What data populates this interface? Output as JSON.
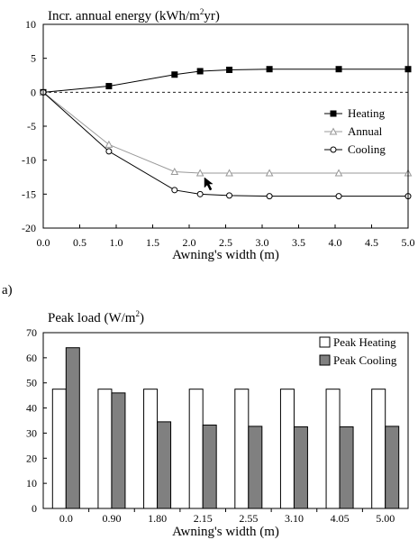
{
  "chart_data": [
    {
      "type": "line",
      "title": "Incr. annual energy (kWh/m²yr)",
      "title_main": "Incr. annual energy (kWh/m",
      "title_sup": "2",
      "title_tail": "yr)",
      "xlabel": "Awning's width (m)",
      "ylabel": "",
      "xlim": [
        0,
        5
      ],
      "ylim": [
        -20,
        10
      ],
      "xticks": [
        "0.0",
        "0.5",
        "1.0",
        "1.5",
        "2.0",
        "2.5",
        "3.0",
        "3.5",
        "4.0",
        "4.5",
        "5.0"
      ],
      "yticks": [
        "10",
        "5",
        "0",
        "-5",
        "-10",
        "-15",
        "-20"
      ],
      "zero_line": "dashed",
      "grid": false,
      "legend_position": "right",
      "series": [
        {
          "name": "Heating",
          "marker": "square",
          "color": "#000000",
          "x": [
            0,
            0.9,
            1.8,
            2.15,
            2.55,
            3.1,
            4.05,
            5.0
          ],
          "y": [
            0,
            0.9,
            2.6,
            3.1,
            3.3,
            3.4,
            3.4,
            3.4
          ]
        },
        {
          "name": "Annual",
          "marker": "triangle",
          "color": "#999999",
          "x": [
            0,
            0.9,
            1.8,
            2.15,
            2.55,
            3.1,
            4.05,
            5.0
          ],
          "y": [
            0,
            -7.7,
            -11.7,
            -11.9,
            -11.9,
            -11.9,
            -11.9,
            -11.9
          ]
        },
        {
          "name": "Cooling",
          "marker": "circle",
          "color": "#000000",
          "x": [
            0,
            0.9,
            1.8,
            2.15,
            2.55,
            3.1,
            4.05,
            5.0
          ],
          "y": [
            0,
            -8.7,
            -14.4,
            -15.0,
            -15.2,
            -15.3,
            -15.3,
            -15.3
          ]
        }
      ]
    },
    {
      "type": "bar",
      "title": "Peak load (W/m²)",
      "title_main": "Peak load (W/m",
      "title_sup": "2",
      "title_tail": ")",
      "xlabel": "Awning's width (m)",
      "ylabel": "",
      "ylim": [
        0,
        70
      ],
      "yticks": [
        "70",
        "60",
        "50",
        "40",
        "30",
        "20",
        "10",
        "0"
      ],
      "categories": [
        "0.0",
        "0.90",
        "1.80",
        "2.15",
        "2.55",
        "3.10",
        "4.05",
        "5.00"
      ],
      "legend_position": "top-right",
      "series": [
        {
          "name": "Peak Heating",
          "color": "#ffffff",
          "values": [
            47.5,
            47.5,
            47.5,
            47.5,
            47.5,
            47.5,
            47.5,
            47.5
          ]
        },
        {
          "name": "Peak Cooling",
          "color": "#808080",
          "values": [
            64,
            46,
            34.5,
            33.2,
            32.7,
            32.5,
            32.5,
            32.7
          ]
        }
      ]
    }
  ],
  "panel_label": "a)"
}
